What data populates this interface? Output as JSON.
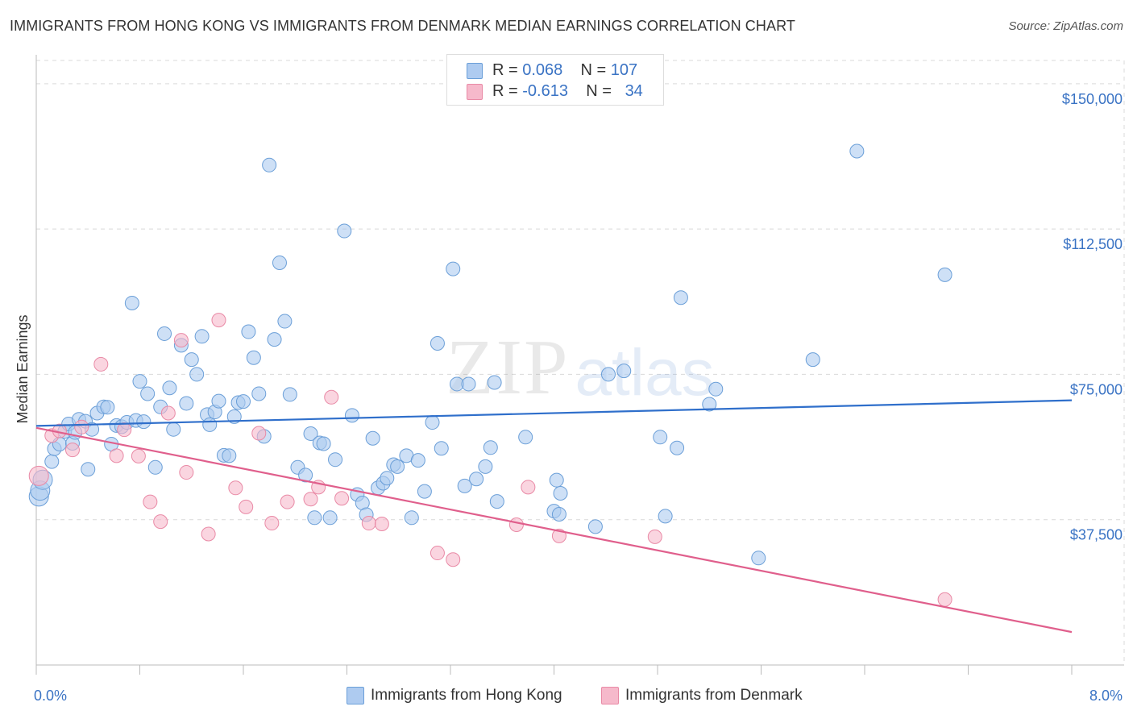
{
  "header": {
    "title": "IMMIGRANTS FROM HONG KONG VS IMMIGRANTS FROM DENMARK MEDIAN EARNINGS CORRELATION CHART",
    "source": "Source: ZipAtlas.com"
  },
  "watermark": {
    "zip": "ZIP",
    "atlas": "atlas"
  },
  "stats_legend": {
    "rows": [
      {
        "r_label": "R =",
        "r_value": "0.068",
        "n_label": "N =",
        "n_value": "107",
        "color": "#aecbf0"
      },
      {
        "r_label": "R =",
        "r_value": "-0.613",
        "n_label": "N =",
        "n_value": "34",
        "color": "#f6b9cb"
      }
    ]
  },
  "colors": {
    "hong_kong_fill": "#aecbf0",
    "hong_kong_stroke": "#6b9fd8",
    "hong_kong_line": "#2f6fcb",
    "denmark_fill": "#f6b9cb",
    "denmark_stroke": "#e98aa6",
    "denmark_line": "#e05f8c",
    "accent_text": "#3a73c4",
    "grid": "#d9d9d9"
  },
  "chart_data": {
    "type": "scatter",
    "title": "IMMIGRANTS FROM HONG KONG VS IMMIGRANTS FROM DENMARK MEDIAN EARNINGS CORRELATION CHART",
    "xlabel": "",
    "ylabel": "Median Earnings",
    "xlim": [
      0,
      8
    ],
    "ylim": [
      0,
      156000
    ],
    "x_tick_labels": [
      "0.0%",
      "8.0%"
    ],
    "y_ticks": [
      37500,
      75000,
      112500,
      150000
    ],
    "y_tick_labels": [
      "$37,500",
      "$75,000",
      "$112,500",
      "$150,000"
    ],
    "grid": true,
    "legend_position": "bottom",
    "series": [
      {
        "name": "Immigrants from Hong Kong",
        "r": 0.068,
        "n": 107,
        "trend": [
          [
            0,
            61700
          ],
          [
            8,
            68300
          ]
        ],
        "points": [
          [
            0.02,
            43500
          ],
          [
            0.03,
            45000
          ],
          [
            0.05,
            47800
          ],
          [
            0.12,
            52500
          ],
          [
            0.14,
            55800
          ],
          [
            0.18,
            57000
          ],
          [
            0.22,
            60300
          ],
          [
            0.25,
            62200
          ],
          [
            0.28,
            57200
          ],
          [
            0.3,
            60000
          ],
          [
            0.33,
            63400
          ],
          [
            0.38,
            62900
          ],
          [
            0.4,
            50500
          ],
          [
            0.43,
            60800
          ],
          [
            0.47,
            65000
          ],
          [
            0.52,
            66600
          ],
          [
            0.55,
            66500
          ],
          [
            0.58,
            57000
          ],
          [
            0.62,
            61800
          ],
          [
            0.66,
            61500
          ],
          [
            0.7,
            62600
          ],
          [
            0.74,
            93400
          ],
          [
            0.77,
            63100
          ],
          [
            0.8,
            73200
          ],
          [
            0.83,
            62800
          ],
          [
            0.86,
            70000
          ],
          [
            0.92,
            51000
          ],
          [
            0.96,
            66600
          ],
          [
            0.99,
            85500
          ],
          [
            1.03,
            71500
          ],
          [
            1.06,
            60800
          ],
          [
            1.12,
            82500
          ],
          [
            1.16,
            67500
          ],
          [
            1.2,
            78800
          ],
          [
            1.24,
            75000
          ],
          [
            1.28,
            84800
          ],
          [
            1.32,
            64600
          ],
          [
            1.34,
            62000
          ],
          [
            1.38,
            65300
          ],
          [
            1.41,
            68100
          ],
          [
            1.45,
            54100
          ],
          [
            1.49,
            54000
          ],
          [
            1.53,
            64100
          ],
          [
            1.56,
            67700
          ],
          [
            1.6,
            68000
          ],
          [
            1.64,
            86000
          ],
          [
            1.68,
            79300
          ],
          [
            1.72,
            70000
          ],
          [
            1.76,
            59000
          ],
          [
            1.8,
            129000
          ],
          [
            1.84,
            84000
          ],
          [
            1.88,
            103800
          ],
          [
            1.92,
            88700
          ],
          [
            1.96,
            69800
          ],
          [
            2.02,
            51000
          ],
          [
            2.08,
            49000
          ],
          [
            2.12,
            59700
          ],
          [
            2.15,
            38000
          ],
          [
            2.19,
            57300
          ],
          [
            2.22,
            57100
          ],
          [
            2.27,
            38000
          ],
          [
            2.31,
            53000
          ],
          [
            2.38,
            112000
          ],
          [
            2.44,
            64400
          ],
          [
            2.48,
            44000
          ],
          [
            2.52,
            41800
          ],
          [
            2.55,
            38800
          ],
          [
            2.6,
            58500
          ],
          [
            2.64,
            45700
          ],
          [
            2.68,
            46900
          ],
          [
            2.71,
            48200
          ],
          [
            2.76,
            51700
          ],
          [
            2.79,
            51200
          ],
          [
            2.86,
            54000
          ],
          [
            2.9,
            38000
          ],
          [
            2.95,
            52800
          ],
          [
            3.0,
            44800
          ],
          [
            3.06,
            62600
          ],
          [
            3.1,
            83000
          ],
          [
            3.13,
            55900
          ],
          [
            3.22,
            102200
          ],
          [
            3.25,
            72500
          ],
          [
            3.31,
            46200
          ],
          [
            3.34,
            72500
          ],
          [
            3.4,
            48000
          ],
          [
            3.47,
            51200
          ],
          [
            3.51,
            56100
          ],
          [
            3.54,
            72900
          ],
          [
            3.56,
            42200
          ],
          [
            3.78,
            58800
          ],
          [
            4.0,
            39700
          ],
          [
            4.02,
            47700
          ],
          [
            4.05,
            44300
          ],
          [
            4.32,
            35700
          ],
          [
            4.42,
            75000
          ],
          [
            4.54,
            75900
          ],
          [
            4.82,
            58800
          ],
          [
            4.86,
            38400
          ],
          [
            4.95,
            56000
          ],
          [
            4.98,
            94800
          ],
          [
            5.2,
            67300
          ],
          [
            5.25,
            71200
          ],
          [
            5.58,
            27600
          ],
          [
            6.0,
            78800
          ],
          [
            6.34,
            132600
          ],
          [
            7.02,
            100700
          ],
          [
            4.04,
            38900
          ]
        ]
      },
      {
        "name": "Immigrants from Denmark",
        "r": -0.613,
        "n": 34,
        "trend": [
          [
            0,
            61200
          ],
          [
            8,
            8500
          ]
        ],
        "points": [
          [
            0.02,
            48800
          ],
          [
            0.12,
            59200
          ],
          [
            0.18,
            60400
          ],
          [
            0.28,
            55500
          ],
          [
            0.35,
            61400
          ],
          [
            0.5,
            77600
          ],
          [
            0.62,
            54000
          ],
          [
            0.68,
            60700
          ],
          [
            0.79,
            53900
          ],
          [
            0.88,
            42100
          ],
          [
            0.96,
            37000
          ],
          [
            1.02,
            65000
          ],
          [
            1.12,
            83800
          ],
          [
            1.16,
            49700
          ],
          [
            1.33,
            33800
          ],
          [
            1.41,
            89000
          ],
          [
            1.54,
            45700
          ],
          [
            1.62,
            40800
          ],
          [
            1.72,
            59800
          ],
          [
            1.82,
            36600
          ],
          [
            1.94,
            42100
          ],
          [
            2.12,
            42800
          ],
          [
            2.18,
            45900
          ],
          [
            2.28,
            69100
          ],
          [
            2.36,
            43000
          ],
          [
            2.57,
            36600
          ],
          [
            2.67,
            36400
          ],
          [
            3.1,
            28900
          ],
          [
            3.22,
            27200
          ],
          [
            3.71,
            36200
          ],
          [
            3.8,
            45900
          ],
          [
            4.04,
            33300
          ],
          [
            4.78,
            33100
          ],
          [
            7.02,
            16900
          ]
        ]
      }
    ]
  },
  "bottom_legend": {
    "items": [
      {
        "label": "Immigrants from Hong Kong",
        "color": "#aecbf0"
      },
      {
        "label": "Immigrants from Denmark",
        "color": "#f6b9cb"
      }
    ]
  }
}
